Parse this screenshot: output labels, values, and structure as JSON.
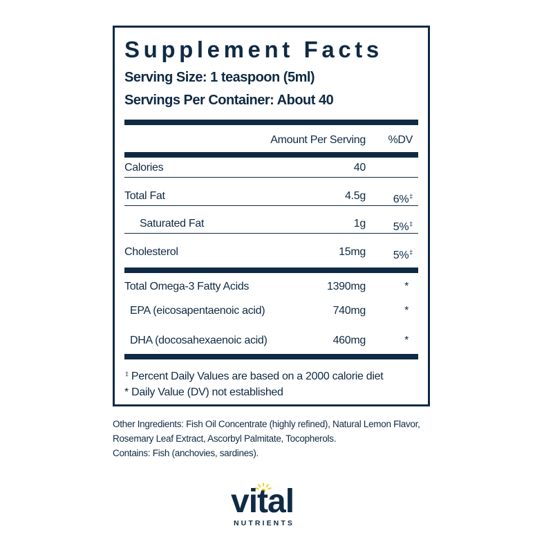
{
  "facts": {
    "title": "Supplement Facts",
    "serving_size": "Serving Size: 1 teaspoon (5ml)",
    "servings_per_container": "Servings Per Container: About 40",
    "header": {
      "amount": "Amount Per Serving",
      "dv": "%DV"
    },
    "rows": [
      {
        "name": "Calories",
        "amount": "40",
        "dv": ""
      },
      {
        "name": "Total Fat",
        "amount": "4.5g",
        "dv": "6%",
        "mark": "‡"
      },
      {
        "name": "Saturated Fat",
        "amount": "1g",
        "dv": "5%",
        "mark": "‡"
      },
      {
        "name": "Cholesterol",
        "amount": "15mg",
        "dv": "5%",
        "mark": "‡"
      },
      {
        "name": "Total Omega-3 Fatty Acids",
        "amount": "1390mg",
        "dv": "*"
      },
      {
        "name": "EPA (eicosapentaenoic acid)",
        "amount": "740mg",
        "dv": "*"
      },
      {
        "name": "DHA (docosahexaenoic acid)",
        "amount": "460mg",
        "dv": "*"
      }
    ],
    "footnotes": {
      "dagger_mark": "‡",
      "dagger_text": "Percent Daily Values are based on a 2000 calorie diet",
      "star": "* Daily Value (DV) not established"
    }
  },
  "ingredients": {
    "line1": "Other Ingredients: Fish Oil Concentrate (highly refined), Natural Lemon Flavor,",
    "line2": "Rosemary Leaf Extract, Ascorbyl Palmitate, Tocopherols.",
    "line3": "Contains: Fish (anchovies, sardines)."
  },
  "logo": {
    "word": "vital",
    "sub": "NUTRIENTS",
    "sun_color": "#f2c300"
  }
}
